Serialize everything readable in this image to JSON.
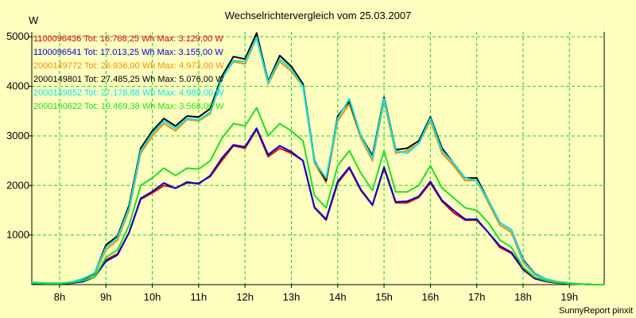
{
  "chart_data": {
    "type": "line",
    "title": "Wechselrichtervergleich vom 25.03.2007",
    "ylabel": "W",
    "xlabel": "",
    "footer": "SunnyReport pinxit",
    "xlim": [
      7.4,
      19.75
    ],
    "ylim": [
      0,
      5100
    ],
    "grid": true,
    "legend_position": "top-left",
    "xticks": [
      {
        "value": 8,
        "label": "8h"
      },
      {
        "value": 9,
        "label": "9h"
      },
      {
        "value": 10,
        "label": "10h"
      },
      {
        "value": 11,
        "label": "11h"
      },
      {
        "value": 12,
        "label": "12h"
      },
      {
        "value": 13,
        "label": "13h"
      },
      {
        "value": 14,
        "label": "14h"
      },
      {
        "value": 15,
        "label": "15h"
      },
      {
        "value": 16,
        "label": "16h"
      },
      {
        "value": 17,
        "label": "17h"
      },
      {
        "value": 18,
        "label": "18h"
      },
      {
        "value": 19,
        "label": "19h"
      }
    ],
    "yticks": [
      {
        "value": 1000,
        "label": "1000"
      },
      {
        "value": 2000,
        "label": "2000"
      },
      {
        "value": 3000,
        "label": "3000"
      },
      {
        "value": 4000,
        "label": "4000"
      },
      {
        "value": 5000,
        "label": "5000"
      }
    ],
    "x": [
      7.4,
      7.75,
      8.0,
      8.25,
      8.5,
      8.75,
      9.0,
      9.25,
      9.5,
      9.75,
      10.0,
      10.25,
      10.5,
      10.75,
      11.0,
      11.25,
      11.5,
      11.75,
      12.0,
      12.25,
      12.5,
      12.75,
      13.0,
      13.25,
      13.5,
      13.75,
      14.0,
      14.25,
      14.5,
      14.75,
      15.0,
      15.25,
      15.5,
      15.75,
      16.0,
      16.25,
      16.5,
      16.75,
      17.0,
      17.25,
      17.5,
      17.75,
      18.0,
      18.25,
      18.5,
      18.75,
      19.0,
      19.25,
      19.5,
      19.75
    ],
    "series": [
      {
        "name": "1100096436",
        "legend": "1100096436 Tot: 16.768,25 Wh Max: 3.129,00 W",
        "color": "#dd0000",
        "values": [
          30,
          20,
          20,
          30,
          60,
          150,
          500,
          620,
          1050,
          1720,
          1850,
          2000,
          1950,
          2050,
          2050,
          2180,
          2500,
          2800,
          2750,
          3129,
          2580,
          2750,
          2650,
          2500,
          1550,
          1300,
          2050,
          2350,
          1900,
          1600,
          2350,
          1650,
          1650,
          1760,
          2050,
          1680,
          1450,
          1300,
          1300,
          1050,
          750,
          630,
          300,
          120,
          60,
          30,
          20,
          10,
          0,
          0
        ]
      },
      {
        "name": "1100096541",
        "legend": "1100096541 Tot: 17.013,25 Wh Max: 3.155,00 W",
        "color": "#0000cc",
        "values": [
          30,
          20,
          20,
          30,
          60,
          150,
          470,
          600,
          1050,
          1740,
          1880,
          2050,
          1940,
          2070,
          2030,
          2200,
          2550,
          2820,
          2780,
          3155,
          2620,
          2800,
          2680,
          2500,
          1560,
          1320,
          2080,
          2370,
          1920,
          1610,
          2370,
          1670,
          1680,
          1780,
          2080,
          1700,
          1500,
          1320,
          1320,
          1050,
          780,
          650,
          320,
          130,
          70,
          35,
          20,
          10,
          0,
          0
        ]
      },
      {
        "name": "2000149772",
        "legend": "2000149772 Tot: 26.936,00 Wh Max: 4.973,00 W",
        "color": "#ff8c00",
        "values": [
          30,
          20,
          20,
          40,
          100,
          200,
          700,
          900,
          1500,
          2650,
          3000,
          3250,
          3100,
          3330,
          3300,
          3450,
          4150,
          4500,
          4450,
          4973,
          4050,
          4500,
          4300,
          4000,
          2450,
          2050,
          3300,
          3650,
          2950,
          2500,
          3700,
          2650,
          2700,
          2850,
          3300,
          2650,
          2400,
          2100,
          2100,
          1650,
          1200,
          1050,
          450,
          200,
          100,
          50,
          30,
          10,
          0,
          0
        ]
      },
      {
        "name": "2000149801",
        "legend": "2000149801 Tot: 27.485,25 Wh Max: 5.076,00 W",
        "color": "#000000",
        "values": [
          30,
          20,
          20,
          40,
          110,
          220,
          800,
          980,
          1600,
          2750,
          3100,
          3350,
          3200,
          3400,
          3380,
          3550,
          4200,
          4600,
          4550,
          5076,
          4100,
          4620,
          4400,
          4050,
          2500,
          2100,
          3400,
          3700,
          3000,
          2600,
          3780,
          2720,
          2750,
          2900,
          3380,
          2750,
          2450,
          2150,
          2150,
          1700,
          1250,
          1100,
          500,
          220,
          110,
          55,
          30,
          10,
          0,
          0
        ]
      },
      {
        "name": "2000149852",
        "legend": "2000149852 Tot: 27.178,88 Wh Max: 4.989,00 W",
        "color": "#00e5ee",
        "values": [
          50,
          30,
          30,
          50,
          120,
          230,
          750,
          950,
          1550,
          2700,
          3050,
          3300,
          3150,
          3350,
          3320,
          3480,
          4150,
          4520,
          4500,
          4989,
          4080,
          4550,
          4350,
          4000,
          2480,
          2150,
          3350,
          3750,
          3000,
          2550,
          3750,
          2700,
          2650,
          2850,
          3350,
          2700,
          2450,
          2150,
          2100,
          1700,
          1250,
          1100,
          480,
          210,
          110,
          55,
          30,
          10,
          0,
          0
        ]
      },
      {
        "name": "2000150622",
        "legend": "2000150622 Tot: 19.469,38 Wh Max: 3.568,00 W",
        "color": "#22dd22",
        "values": [
          30,
          20,
          20,
          40,
          80,
          150,
          550,
          700,
          1200,
          2000,
          2150,
          2350,
          2200,
          2350,
          2330,
          2500,
          2950,
          3250,
          3200,
          3568,
          3000,
          3250,
          3100,
          2900,
          1800,
          1550,
          2400,
          2700,
          2250,
          1900,
          2700,
          1870,
          1870,
          2000,
          2400,
          1950,
          1750,
          1550,
          1500,
          1250,
          900,
          750,
          350,
          150,
          80,
          40,
          20,
          10,
          0,
          0
        ]
      }
    ]
  }
}
